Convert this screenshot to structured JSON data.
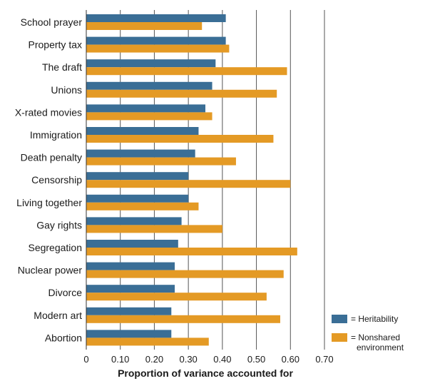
{
  "chart_data": {
    "type": "bar",
    "orientation": "horizontal",
    "categories": [
      "School prayer",
      "Property tax",
      "The draft",
      "Unions",
      "X-rated movies",
      "Immigration",
      "Death penalty",
      "Censorship",
      "Living together",
      "Gay rights",
      "Segregation",
      "Nuclear power",
      "Divorce",
      "Modern art",
      "Abortion"
    ],
    "series": [
      {
        "name": "= Heritability",
        "color": "#3a6e96",
        "values": [
          0.41,
          0.41,
          0.38,
          0.37,
          0.35,
          0.33,
          0.32,
          0.3,
          0.3,
          0.28,
          0.27,
          0.26,
          0.26,
          0.25,
          0.25
        ]
      },
      {
        "name": "= Nonshared environment",
        "color": "#e49a25",
        "values": [
          0.34,
          0.42,
          0.59,
          0.56,
          0.37,
          0.55,
          0.44,
          0.6,
          0.33,
          0.4,
          0.62,
          0.58,
          0.53,
          0.57,
          0.36
        ]
      }
    ],
    "xlabel": "Proportion of variance accounted for",
    "xlim": [
      0,
      0.7
    ],
    "xticks": [
      "0",
      "0.10",
      "0.20",
      "0.30",
      "0.40",
      "0.50",
      "0.60",
      "0.70"
    ],
    "grid": "vertical",
    "legend_position": "bottom-right"
  }
}
